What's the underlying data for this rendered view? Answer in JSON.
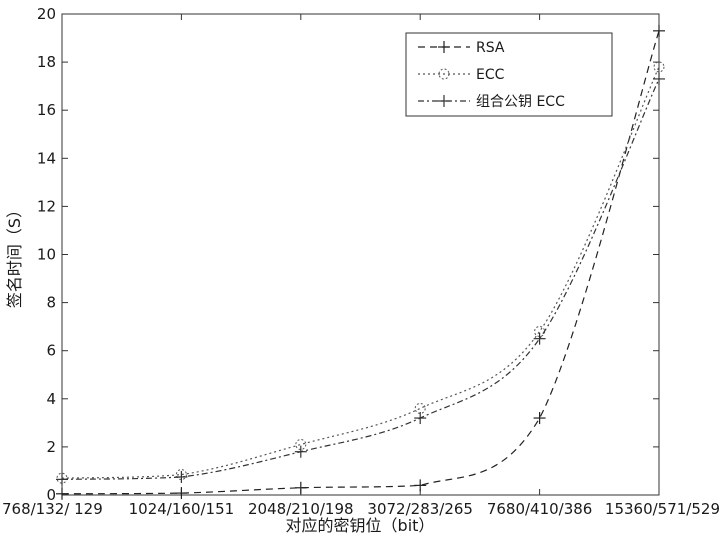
{
  "chart_data": {
    "type": "line",
    "title": "",
    "xlabel": "对应的密钥位（bit）",
    "ylabel": "签名时间（S）",
    "categories": [
      "768/132/ 129",
      "1024/160/151",
      "2048/210/198",
      "3072/283/265",
      "7680/410/386",
      "15360/571/529"
    ],
    "ylim": [
      0,
      20
    ],
    "yticks": [
      0,
      2,
      4,
      6,
      8,
      10,
      12,
      14,
      16,
      18,
      20
    ],
    "grid": false,
    "legend_position": "top-right",
    "series": [
      {
        "name": "RSA",
        "values": [
          0.05,
          0.08,
          0.3,
          0.4,
          3.2,
          19.3
        ],
        "color": "#222222",
        "dash": "7,5",
        "marker": "plus"
      },
      {
        "name": "ECC",
        "values": [
          0.7,
          0.85,
          2.1,
          3.6,
          6.8,
          17.8
        ],
        "color": "#555555",
        "dash": "2,3",
        "marker": "circle"
      },
      {
        "name": "组合公钥 ECC",
        "values": [
          0.65,
          0.75,
          1.8,
          3.2,
          6.5,
          17.3
        ],
        "color": "#333333",
        "dash": "6,3,2,3",
        "marker": "plus"
      }
    ]
  }
}
